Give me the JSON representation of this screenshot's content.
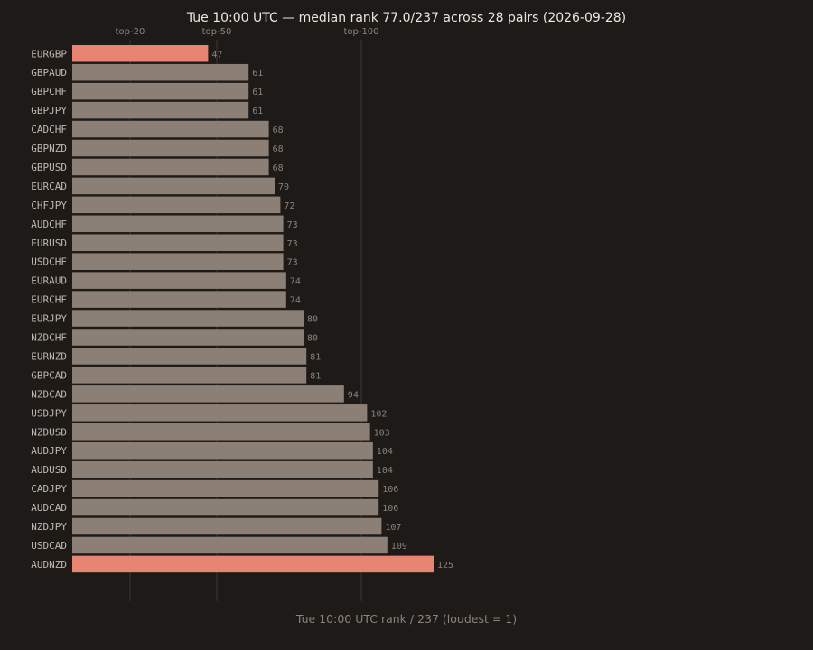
{
  "chart_data": {
    "type": "bar",
    "orientation": "horizontal",
    "title": "Tue 10:00 UTC — median rank 77.0/237 across 28 pairs (2026-09-28)",
    "xlabel": "Tue 10:00 UTC rank / 237 (loudest = 1)",
    "ylabel": "",
    "xlim": [
      0,
      260
    ],
    "categories": [
      "EURGBP",
      "GBPAUD",
      "GBPCHF",
      "GBPJPY",
      "CADCHF",
      "GBPNZD",
      "GBPUSD",
      "EURCAD",
      "CHFJPY",
      "AUDCHF",
      "EURUSD",
      "USDCHF",
      "EURAUD",
      "EURCHF",
      "EURJPY",
      "NZDCHF",
      "EURNZD",
      "GBPCAD",
      "NZDCAD",
      "USDJPY",
      "NZDUSD",
      "AUDJPY",
      "AUDUSD",
      "CADJPY",
      "AUDCAD",
      "NZDJPY",
      "USDCAD",
      "AUDNZD"
    ],
    "values": [
      47,
      61,
      61,
      61,
      68,
      68,
      68,
      70,
      72,
      73,
      73,
      73,
      74,
      74,
      80,
      80,
      81,
      81,
      94,
      102,
      103,
      104,
      104,
      106,
      106,
      107,
      109,
      125
    ],
    "highlighted": [
      "EURGBP",
      "AUDNZD"
    ],
    "reference_lines": [
      {
        "label": "top-20",
        "value": 20
      },
      {
        "label": "top-50",
        "value": 50
      },
      {
        "label": "top-100",
        "value": 100
      }
    ],
    "colors": {
      "background": "#1e1a17",
      "bar": "#8c8076",
      "highlight": "#e88472",
      "reference_line": "#3a3530"
    },
    "grid": false,
    "legend": "none"
  }
}
